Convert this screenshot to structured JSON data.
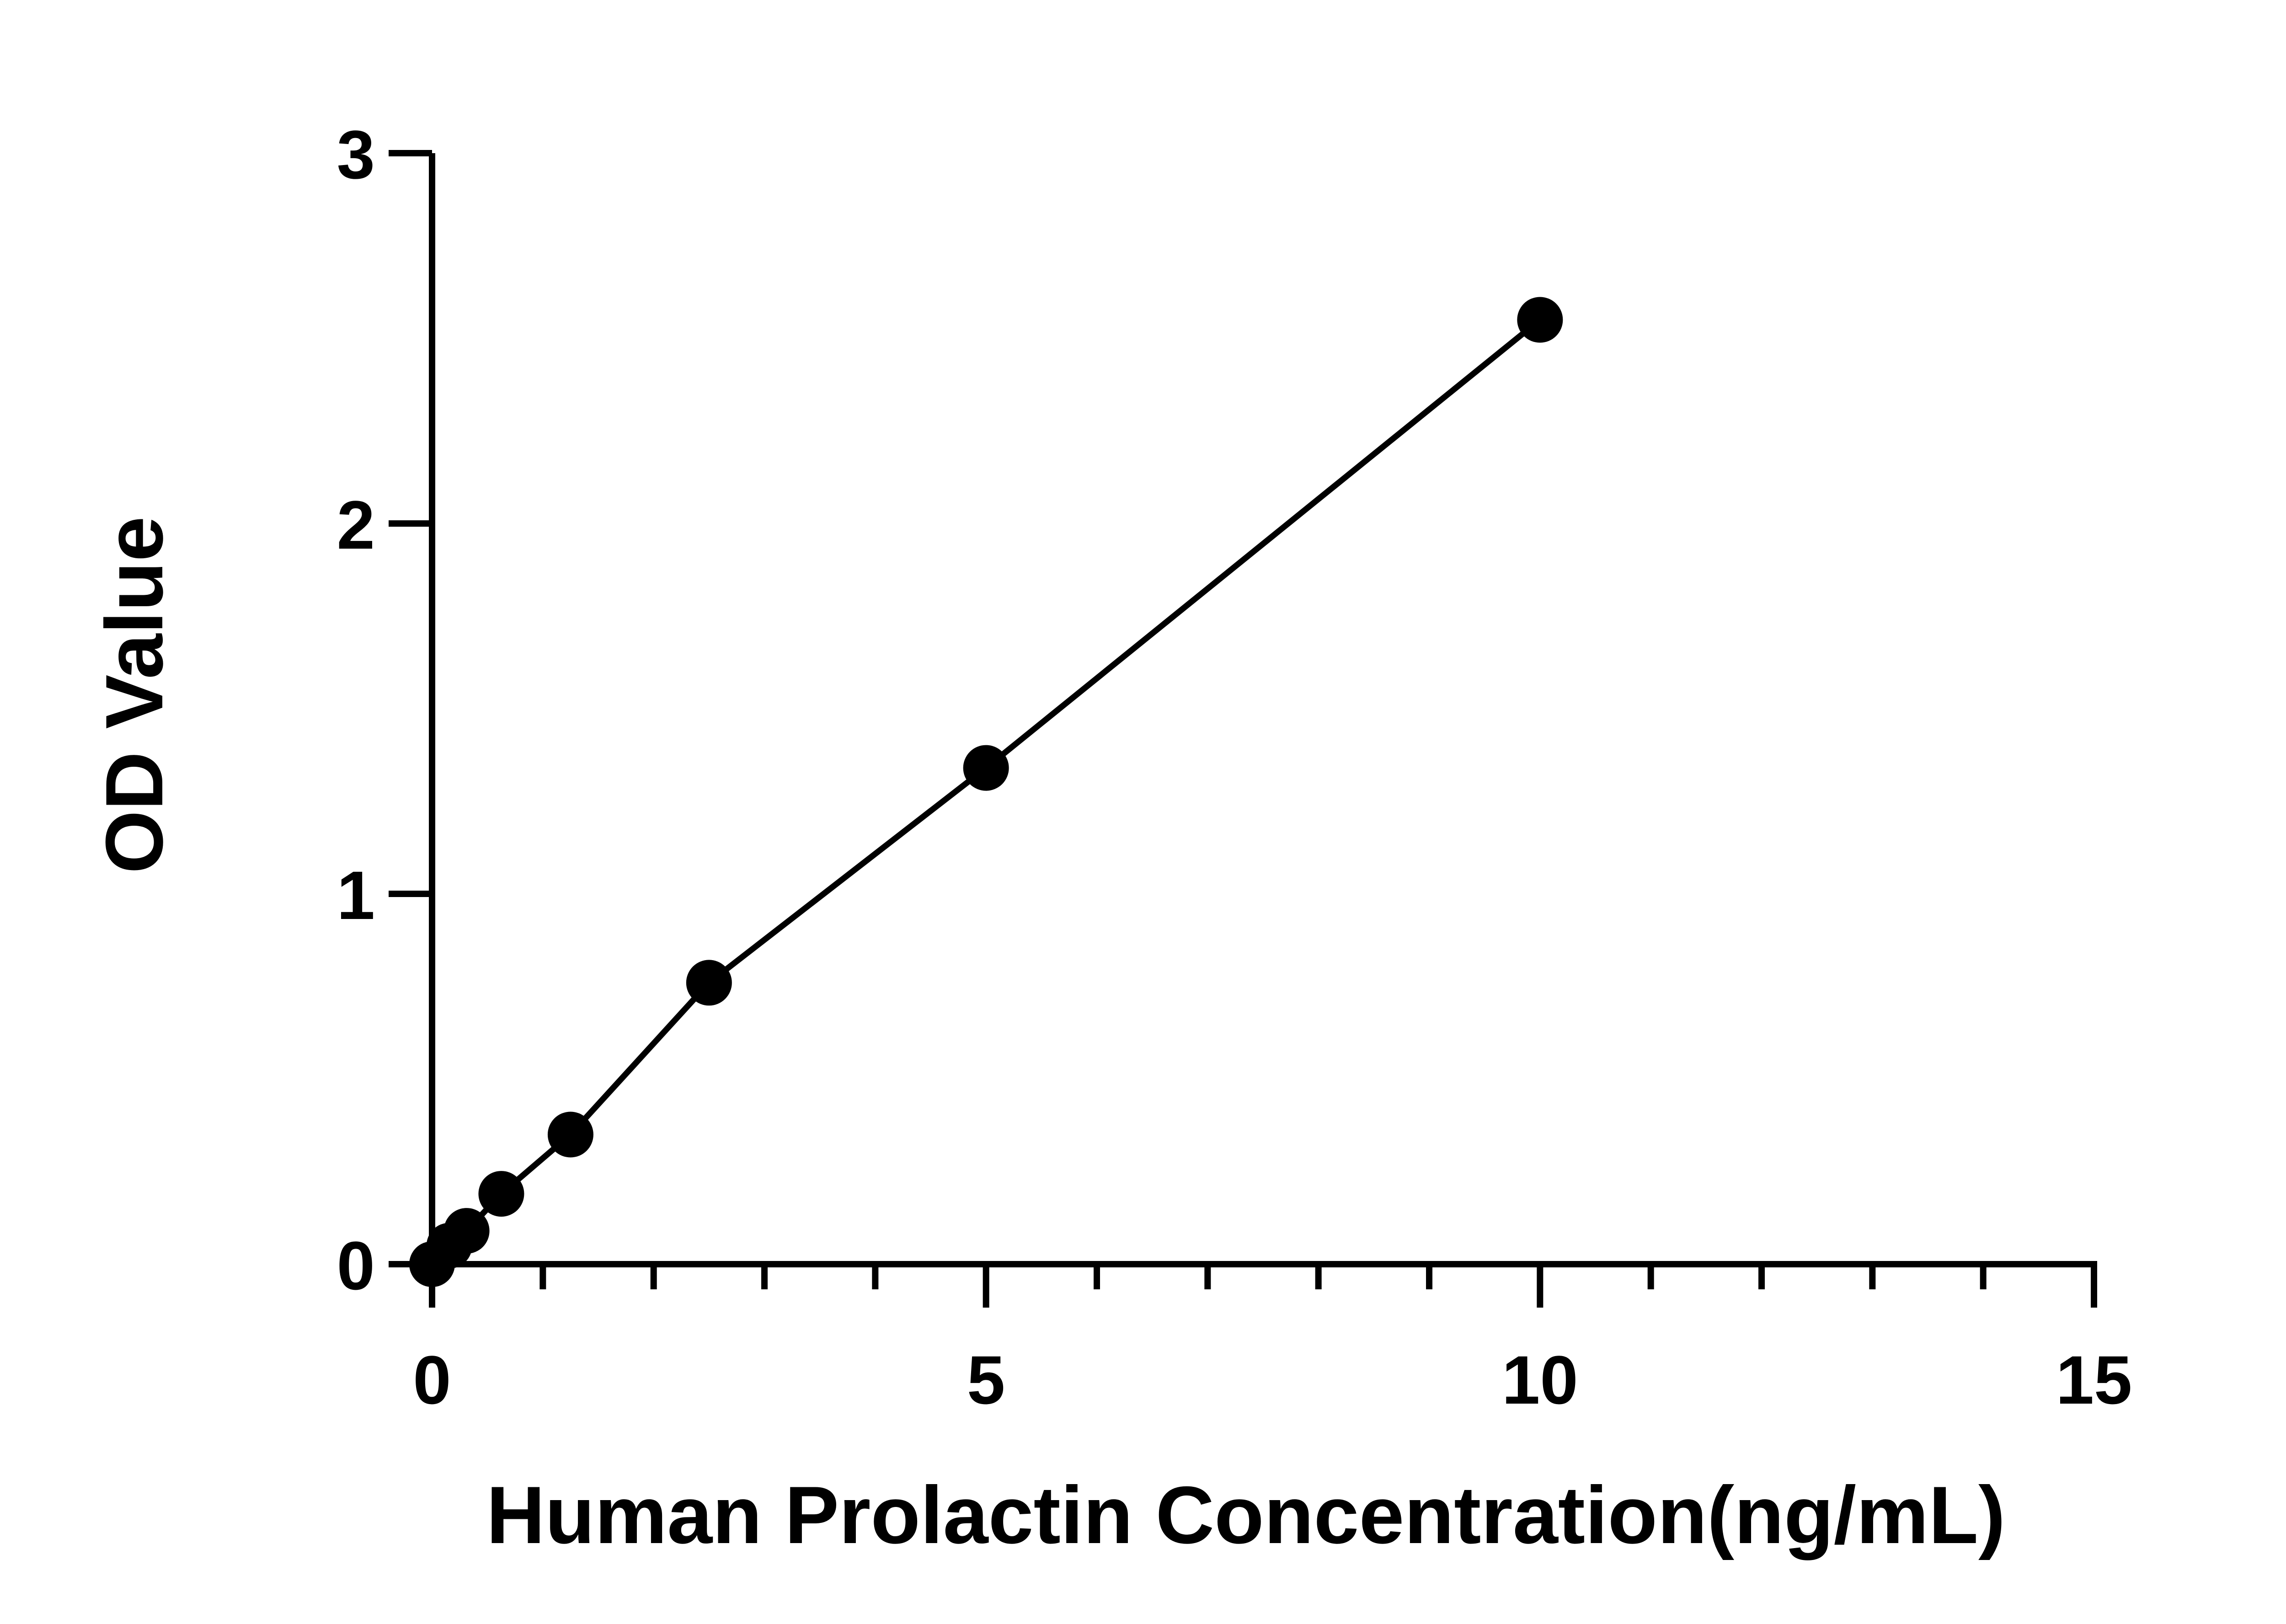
{
  "chart_data": {
    "type": "scatter",
    "title": "",
    "xlabel": "Human Prolactin Concentration(ng/mL)",
    "ylabel": "OD Value",
    "xlim": [
      0,
      15
    ],
    "ylim": [
      0,
      3
    ],
    "x_major_ticks": [
      0,
      5,
      10,
      15
    ],
    "x_minor_step": 1,
    "y_major_ticks": [
      0,
      1,
      2,
      3
    ],
    "x_tick_labels": [
      "0",
      "5",
      "10",
      "15"
    ],
    "y_tick_labels": [
      "0",
      "1",
      "2",
      "3"
    ],
    "grid": false,
    "legend": "none",
    "fit_line": true,
    "colors": {
      "marker": "#000000",
      "line": "#000000",
      "axis": "#000000"
    },
    "series": [
      {
        "x": [
          0,
          0.156,
          0.312,
          0.625,
          1.25,
          2.5,
          5,
          10
        ],
        "y": [
          0.0,
          0.05,
          0.09,
          0.19,
          0.35,
          0.76,
          1.34,
          2.55
        ]
      }
    ]
  }
}
